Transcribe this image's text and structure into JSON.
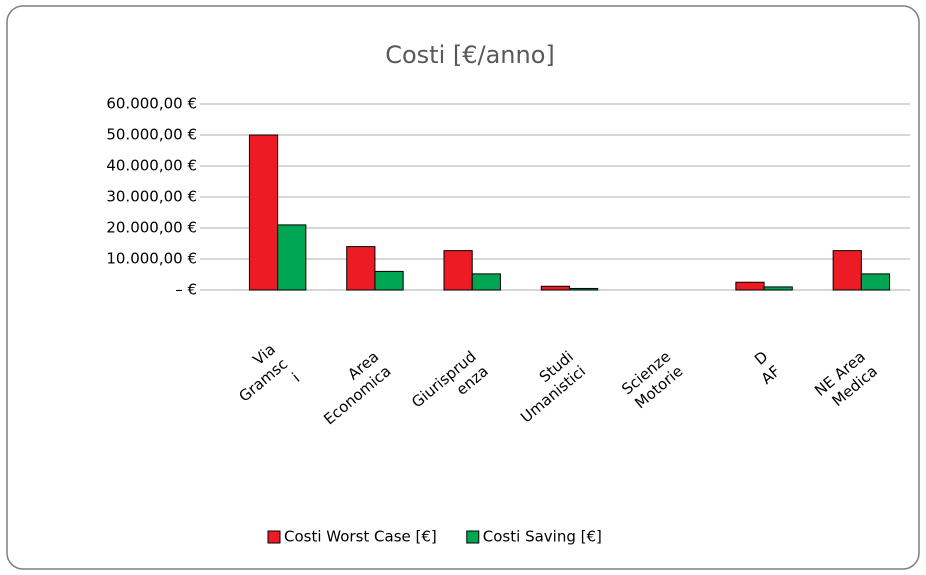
{
  "chart_data": {
    "type": "bar",
    "title": "Costi [€/anno]",
    "categories": [
      [
        "Via",
        "Gramsc",
        "i"
      ],
      [
        "Area",
        "Economica"
      ],
      [
        "Giurisprud",
        "enza"
      ],
      [
        "Studi",
        "Umanistici"
      ],
      [
        "Scienze",
        "Motorie"
      ],
      [
        "D",
        "AF"
      ],
      [
        "NE Area",
        "Medica"
      ]
    ],
    "series": [
      {
        "name": "Costi Worst Case [€]",
        "color": "#ed1c24",
        "values": [
          50000,
          14000,
          12700,
          1200,
          0,
          2500,
          12700
        ]
      },
      {
        "name": "Costi Saving [€]",
        "color": "#00a651",
        "values": [
          21000,
          6000,
          5200,
          500,
          0,
          1000,
          5200
        ]
      }
    ],
    "ylim": [
      0,
      60000
    ],
    "yticks": [
      {
        "value": 0,
        "label": "–   €"
      },
      {
        "value": 10000,
        "label": "10.000,00 €"
      },
      {
        "value": 20000,
        "label": "20.000,00 €"
      },
      {
        "value": 30000,
        "label": "30.000,00 €"
      },
      {
        "value": 40000,
        "label": "40.000,00 €"
      },
      {
        "value": 50000,
        "label": "50.000,00 €"
      },
      {
        "value": 60000,
        "label": "60.000,00 €"
      }
    ],
    "grid": true,
    "legend": "bottom"
  }
}
